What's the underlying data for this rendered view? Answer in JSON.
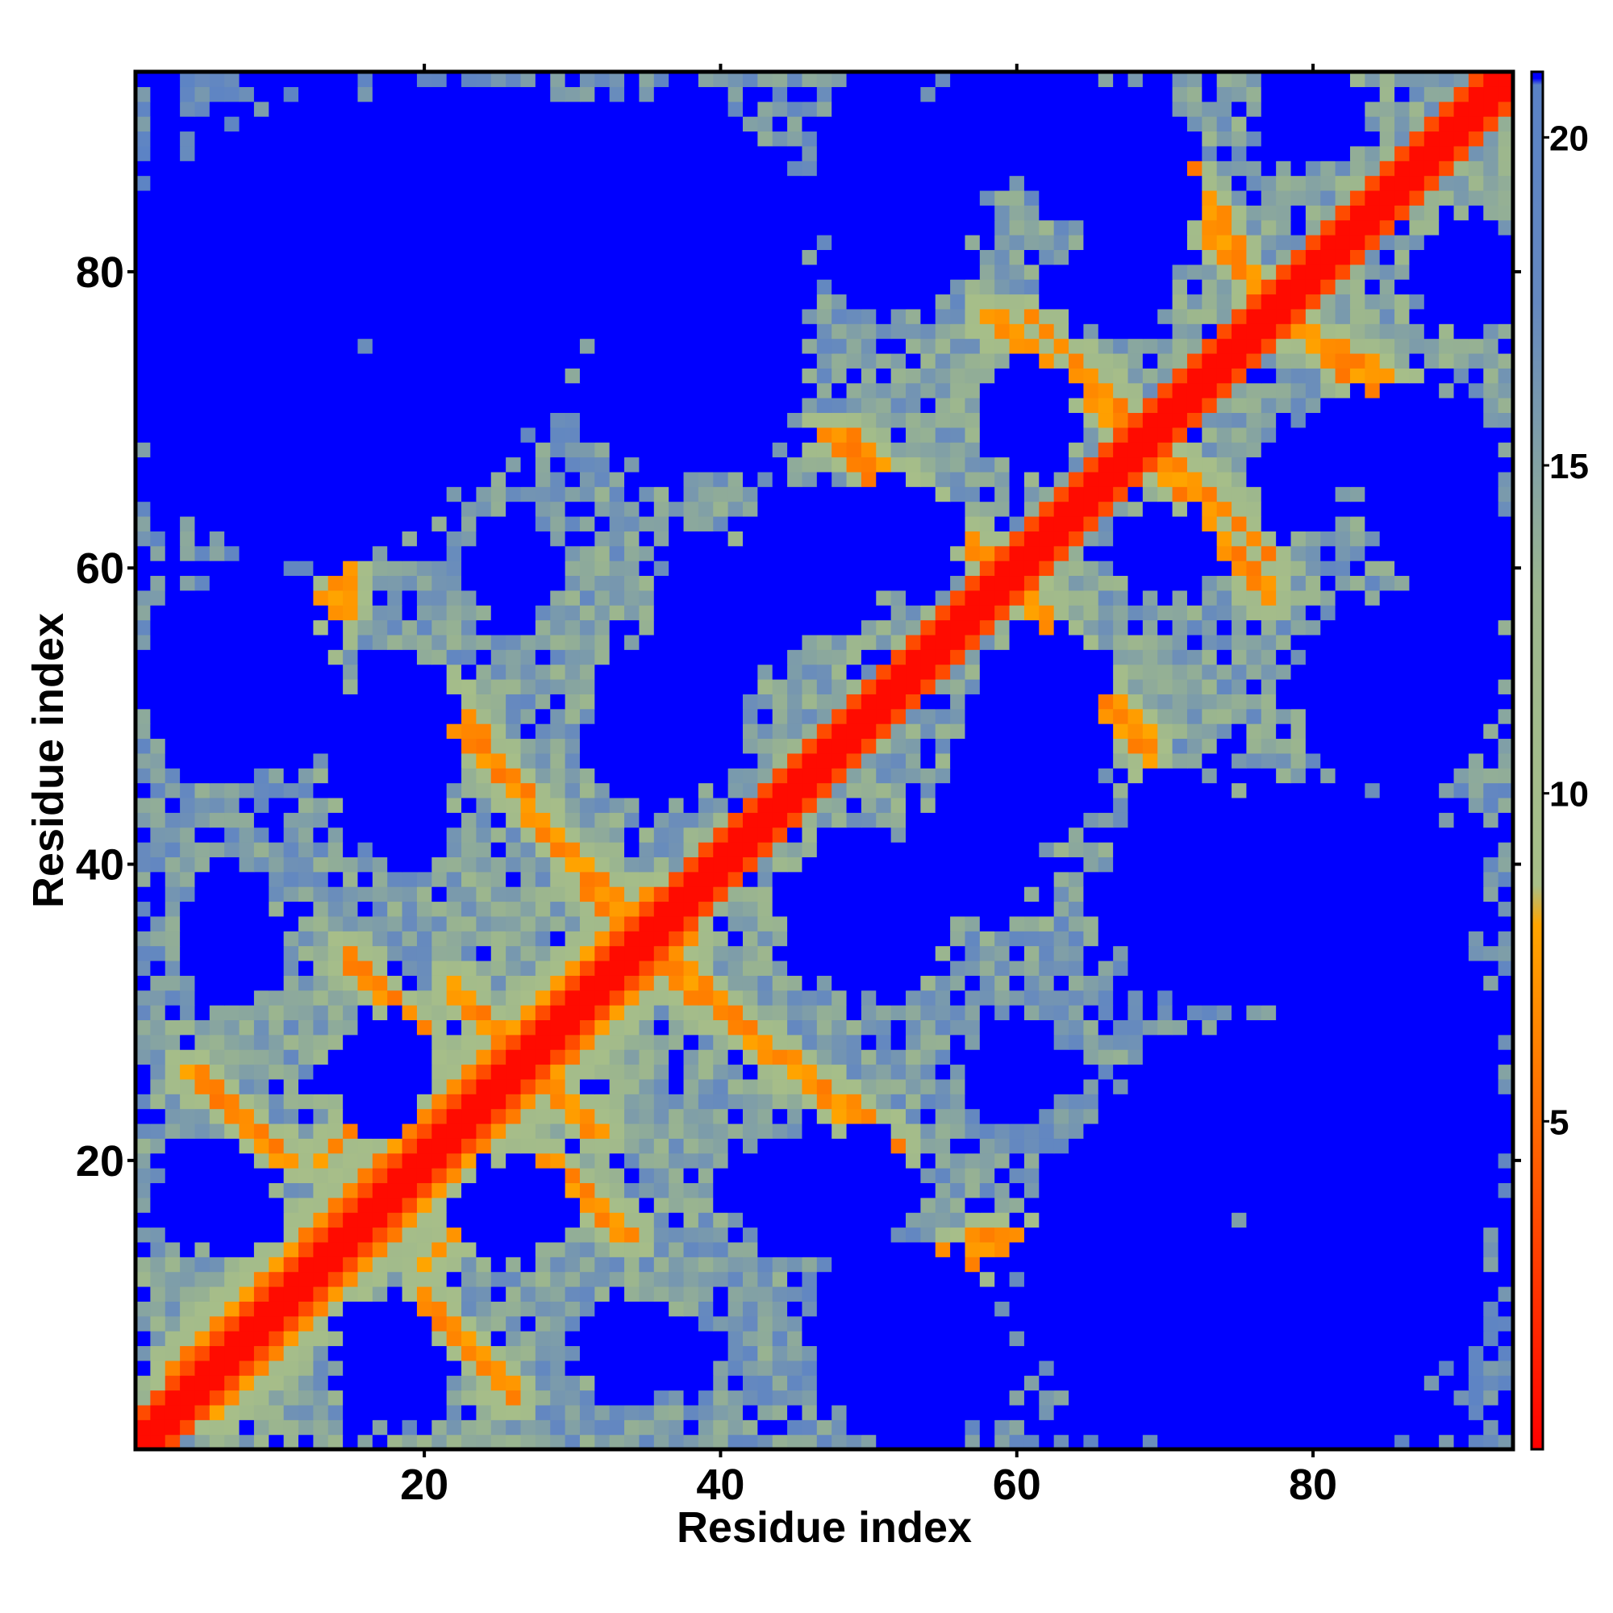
{
  "chart_data": {
    "type": "heatmap",
    "title": "",
    "xlabel": "Residue index",
    "ylabel": "Residue index",
    "n_residues": 93,
    "xlim": [
      1,
      93
    ],
    "ylim": [
      1,
      93
    ],
    "x_ticks": [
      20,
      40,
      60,
      80
    ],
    "y_ticks": [
      20,
      40,
      60,
      80
    ],
    "x_tick_labels": [
      "20",
      "40",
      "60",
      "80"
    ],
    "y_tick_labels": [
      "20",
      "40",
      "60",
      "80"
    ],
    "colorbar": {
      "range": [
        0,
        21
      ],
      "ticks": [
        5,
        10,
        15,
        20
      ],
      "tick_labels": [
        "5",
        "10",
        "15",
        "20"
      ],
      "stops": [
        {
          "value": 0,
          "color": "#ff0000"
        },
        {
          "value": 4.5,
          "color": "#ff6000"
        },
        {
          "value": 8.0,
          "color": "#ffa500"
        },
        {
          "value": 8.6,
          "color": "#a8bf88"
        },
        {
          "value": 13.0,
          "color": "#9cb68e"
        },
        {
          "value": 17.5,
          "color": "#6488c0"
        },
        {
          "value": 20.8,
          "color": "#5a82c6"
        },
        {
          "value": 20.9,
          "color": "#0000ff"
        },
        {
          "value": 21,
          "color": "#0000ff"
        }
      ]
    },
    "contact_bands": [
      {
        "from": [
          3,
          6
        ],
        "to": [
          35,
          38
        ],
        "kind": "antiparallel"
      },
      {
        "from": [
          6,
          4
        ],
        "to": [
          18,
          17
        ],
        "kind": "antiparallel"
      },
      {
        "from": [
          13,
          20
        ],
        "to": [
          19,
          26
        ],
        "kind": "antiparallel"
      },
      {
        "from": [
          20,
          11
        ],
        "to": [
          26,
          4
        ],
        "kind": "antiparallel"
      },
      {
        "from": [
          28,
          20
        ],
        "to": [
          34,
          15
        ],
        "kind": "antiparallel"
      },
      {
        "from": [
          26,
          27
        ],
        "to": [
          32,
          22
        ],
        "kind": "antiparallel"
      },
      {
        "from": [
          35,
          34
        ],
        "to": [
          52,
          21
        ],
        "kind": "antiparallel"
      },
      {
        "from": [
          48,
          10
        ],
        "to": [
          58,
          15
        ],
        "kind": "antiparallel"
      },
      {
        "from": [
          61,
          58
        ],
        "to": [
          69,
          48
        ],
        "kind": "antiparallel"
      },
      {
        "from": [
          47,
          69
        ],
        "to": [
          58,
          61
        ],
        "kind": "antiparallel"
      },
      {
        "from": [
          58,
          77
        ],
        "to": [
          67,
          70
        ],
        "kind": "antiparallel"
      },
      {
        "from": [
          70,
          68
        ],
        "to": [
          77,
          61
        ],
        "kind": "antiparallel"
      },
      {
        "from": [
          70,
          89
        ],
        "to": [
          77,
          78
        ],
        "kind": "antiparallel"
      },
      {
        "from": [
          78,
          77
        ],
        "to": [
          88,
          69
        ],
        "kind": "antiparallel"
      },
      {
        "from": [
          21,
          51
        ],
        "to": [
          33,
          37
        ],
        "kind": "antiparallel"
      },
      {
        "from": [
          9,
          53
        ],
        "to": [
          15,
          60
        ],
        "kind": "antiparallel"
      }
    ],
    "far_regions": [
      {
        "x": [
          4,
          16
        ],
        "y": [
          58,
          93
        ]
      },
      {
        "x": [
          16,
          30
        ],
        "y": [
          66,
          93
        ]
      },
      {
        "x": [
          30,
          46
        ],
        "y": [
          66,
          93
        ]
      },
      {
        "x": [
          46,
          58
        ],
        "y": [
          78,
          93
        ]
      },
      {
        "x": [
          60,
          72
        ],
        "y": [
          83,
          93
        ]
      },
      {
        "x": [
          13,
          22
        ],
        "y": [
          42,
          52
        ]
      },
      {
        "x": [
          31,
          42
        ],
        "y": [
          44,
          56
        ]
      },
      {
        "x": [
          41,
          52
        ],
        "y": [
          56,
          66
        ]
      },
      {
        "x": [
          52,
          62
        ],
        "y": [
          36,
          45
        ]
      },
      {
        "x": [
          58,
          66
        ],
        "y": [
          46,
          56
        ]
      },
      {
        "x": [
          66,
          78
        ],
        "y": [
          30,
          46
        ]
      },
      {
        "x": [
          76,
          93
        ],
        "y": [
          1,
          43
        ]
      },
      {
        "x": [
          46,
          60
        ],
        "y": [
          1,
          14
        ]
      },
      {
        "x": [
          60,
          76
        ],
        "y": [
          1,
          24
        ]
      },
      {
        "x": [
          40,
          54
        ],
        "y": [
          14,
          22
        ]
      },
      {
        "x": [
          56,
          64
        ],
        "y": [
          23,
          29
        ]
      },
      {
        "x": [
          22,
          30
        ],
        "y": [
          14,
          20
        ]
      },
      {
        "x": [
          13,
          20
        ],
        "y": [
          24,
          28
        ]
      },
      {
        "x": [
          4,
          10
        ],
        "y": [
          14,
          20
        ]
      },
      {
        "x": [
          30,
          40
        ],
        "y": [
          4,
          10
        ]
      },
      {
        "x": [
          14,
          22
        ],
        "y": [
          2,
          8
        ]
      },
      {
        "x": [
          1,
          6
        ],
        "y": [
          48,
          56
        ]
      },
      {
        "x": [
          86,
          93
        ],
        "y": [
          52,
          66
        ]
      },
      {
        "x": [
          66,
          74
        ],
        "y": [
          58,
          64
        ]
      },
      {
        "x": [
          80,
          90
        ],
        "y": [
          66,
          72
        ]
      },
      {
        "x": [
          87,
          93
        ],
        "y": [
          76,
          82
        ]
      },
      {
        "x": [
          76,
          84
        ],
        "y": [
          88,
          93
        ]
      },
      {
        "x": [
          62,
          70
        ],
        "y": [
          76,
          82
        ]
      },
      {
        "x": [
          1,
          4
        ],
        "y": [
          60,
          93
        ]
      }
    ]
  }
}
